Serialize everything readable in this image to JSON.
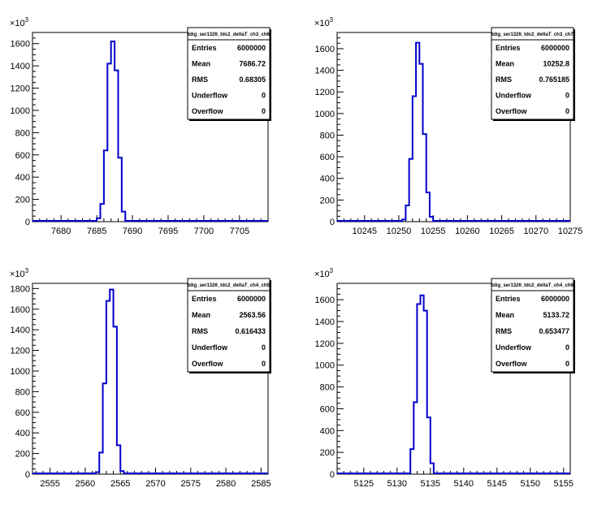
{
  "colors": {
    "histogram_line": "#0000cc",
    "axis": "#000000",
    "background": "#ffffff"
  },
  "chart_data": [
    {
      "type": "histogram",
      "title": "tdig_ser1326_tdc2_deltaT_ch3_ch6",
      "xlim": [
        7676,
        7709
      ],
      "ylim": [
        0,
        1700
      ],
      "y_multiplier_label": "x10^3",
      "y_multiplier": "×10",
      "y_multiplier_exp": "3",
      "xticks": [
        7680,
        7685,
        7690,
        7695,
        7700,
        7705
      ],
      "yticks": [
        0,
        200,
        400,
        600,
        800,
        1000,
        1200,
        1400,
        1600
      ],
      "bin_width": 0.5,
      "bins": [
        [
          7685.0,
          30
        ],
        [
          7685.5,
          160
        ],
        [
          7686.0,
          640
        ],
        [
          7686.5,
          1420
        ],
        [
          7687.0,
          1620
        ],
        [
          7687.5,
          1360
        ],
        [
          7688.0,
          575
        ],
        [
          7688.5,
          90
        ]
      ],
      "stats": [
        {
          "label": "Entries",
          "value": "6000000"
        },
        {
          "label": "Mean",
          "value": "7686.72"
        },
        {
          "label": "RMS",
          "value": "0.68305"
        },
        {
          "label": "Underflow",
          "value": "0"
        },
        {
          "label": "Overflow",
          "value": "0"
        }
      ]
    },
    {
      "type": "histogram",
      "title": "tdig_ser1326_tdc2_deltaT_ch3_ch7",
      "xlim": [
        10241,
        10275
      ],
      "ylim": [
        0,
        1750
      ],
      "y_multiplier_label": "x10^3",
      "y_multiplier": "×10",
      "y_multiplier_exp": "3",
      "xticks": [
        10245,
        10250,
        10255,
        10260,
        10265,
        10270,
        10275
      ],
      "yticks": [
        0,
        200,
        400,
        600,
        800,
        1000,
        1200,
        1400,
        1600
      ],
      "bin_width": 0.5,
      "bins": [
        [
          10250.5,
          20
        ],
        [
          10251.0,
          150
        ],
        [
          10251.5,
          580
        ],
        [
          10252.0,
          1160
        ],
        [
          10252.5,
          1655
        ],
        [
          10253.0,
          1460
        ],
        [
          10253.5,
          810
        ],
        [
          10254.0,
          270
        ],
        [
          10254.5,
          45
        ]
      ],
      "stats": [
        {
          "label": "Entries",
          "value": "6000000"
        },
        {
          "label": "Mean",
          "value": "10252.8"
        },
        {
          "label": "RMS",
          "value": "0.765185"
        },
        {
          "label": "Underflow",
          "value": "0"
        },
        {
          "label": "Overflow",
          "value": "0"
        }
      ]
    },
    {
      "type": "histogram",
      "title": "tdig_ser1326_tdc2_deltaT_ch4_ch5",
      "xlim": [
        2552.5,
        2586
      ],
      "ylim": [
        0,
        1850
      ],
      "y_multiplier_label": "x10^3",
      "y_multiplier": "×10",
      "y_multiplier_exp": "3",
      "xticks": [
        2555,
        2560,
        2565,
        2570,
        2575,
        2580,
        2585
      ],
      "yticks": [
        0,
        200,
        400,
        600,
        800,
        1000,
        1200,
        1400,
        1600,
        1800
      ],
      "bin_width": 0.5,
      "bins": [
        [
          2561.5,
          20
        ],
        [
          2562.0,
          210
        ],
        [
          2562.5,
          880
        ],
        [
          2563.0,
          1680
        ],
        [
          2563.5,
          1790
        ],
        [
          2564.0,
          1430
        ],
        [
          2564.5,
          280
        ],
        [
          2565.0,
          30
        ]
      ],
      "stats": [
        {
          "label": "Entries",
          "value": "6000000"
        },
        {
          "label": "Mean",
          "value": "2563.56"
        },
        {
          "label": "RMS",
          "value": "0.616433"
        },
        {
          "label": "Underflow",
          "value": "0"
        },
        {
          "label": "Overflow",
          "value": "0"
        }
      ]
    },
    {
      "type": "histogram",
      "title": "tdig_ser1326_tdc2_deltaT_ch4_ch6",
      "xlim": [
        5121,
        5156
      ],
      "ylim": [
        0,
        1750
      ],
      "y_multiplier_label": "x10^3",
      "y_multiplier": "×10",
      "y_multiplier_exp": "3",
      "xticks": [
        5125,
        5130,
        5135,
        5140,
        5145,
        5150,
        5155
      ],
      "yticks": [
        0,
        200,
        400,
        600,
        800,
        1000,
        1200,
        1400,
        1600
      ],
      "bin_width": 0.5,
      "bins": [
        [
          5132.0,
          230
        ],
        [
          5132.5,
          660
        ],
        [
          5133.0,
          1560
        ],
        [
          5133.5,
          1640
        ],
        [
          5134.0,
          1500
        ],
        [
          5134.5,
          520
        ],
        [
          5135.0,
          100
        ]
      ],
      "stats": [
        {
          "label": "Entries",
          "value": "6000000"
        },
        {
          "label": "Mean",
          "value": "5133.72"
        },
        {
          "label": "RMS",
          "value": "0.653477"
        },
        {
          "label": "Underflow",
          "value": "0"
        },
        {
          "label": "Overflow",
          "value": "0"
        }
      ]
    }
  ]
}
